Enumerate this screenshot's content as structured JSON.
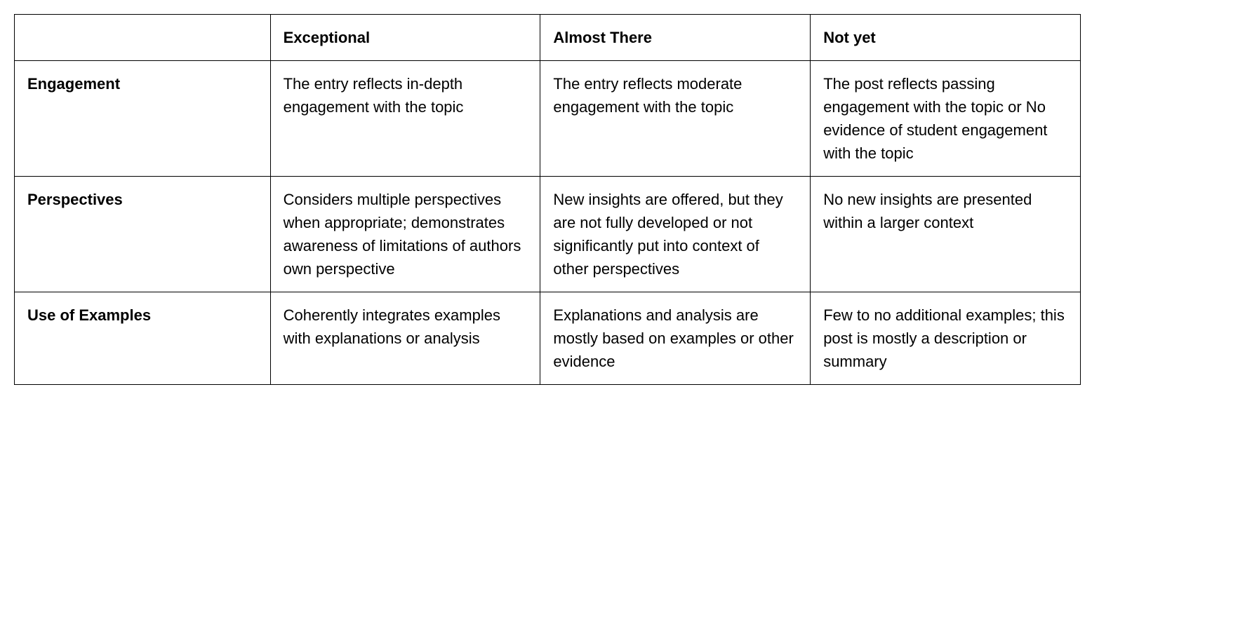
{
  "rubric": {
    "type": "table",
    "background_color": "#ffffff",
    "border_color": "#000000",
    "text_color": "#000000",
    "font_family": "Arial",
    "font_size_pt": 16,
    "line_height": 1.5,
    "column_widths_pct": [
      24,
      25.33,
      25.33,
      25.33
    ],
    "columns": [
      "",
      "Exceptional",
      "Almost There",
      "Not yet"
    ],
    "rows": [
      {
        "criterion": "Engagement",
        "exceptional": "The entry reflects in-depth engagement with the topic",
        "almost_there": "The entry reflects moderate engagement with the topic",
        "not_yet": "The post reflects passing engagement with the topic or No evidence of student engagement with the topic"
      },
      {
        "criterion": "Perspectives",
        "exceptional": "Considers multiple perspectives when appropriate; demonstrates awareness of limitations of authors own perspective",
        "almost_there": "New insights are offered, but they are not fully developed or not significantly put into context of other perspectives",
        "not_yet": "No new insights are presented within a larger context"
      },
      {
        "criterion": "Use of Examples",
        "exceptional": "Coherently integrates examples with explanations or analysis",
        "almost_there": "Explanations and analysis are mostly based on examples or other evidence",
        "not_yet": "Few to no additional examples; this post is mostly a description or summary"
      }
    ]
  }
}
